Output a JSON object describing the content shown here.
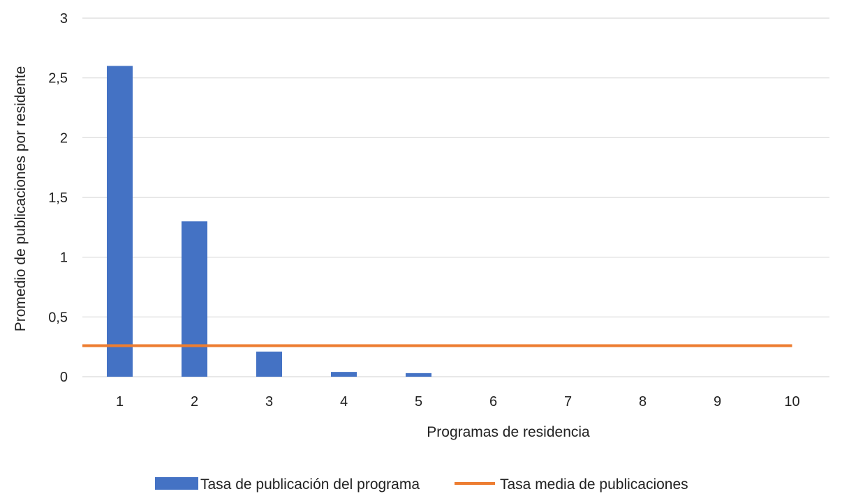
{
  "chart_data": {
    "type": "bar",
    "title": "",
    "xlabel": "Programas de residencia",
    "ylabel": "Promedio de publicaciones por residente",
    "categories": [
      "1",
      "2",
      "3",
      "4",
      "5",
      "6",
      "7",
      "8",
      "9",
      "10"
    ],
    "series": [
      {
        "name": "Tasa de publicación del programa",
        "type": "bar",
        "color": "#4472C4",
        "values": [
          2.6,
          1.3,
          0.21,
          0.04,
          0.03,
          0,
          0,
          0,
          0,
          0
        ]
      },
      {
        "name": "Tasa media de publicaciones",
        "type": "line",
        "color": "#ED7D31",
        "values": [
          0.26,
          0.26,
          0.26,
          0.26,
          0.26,
          0.26,
          0.26,
          0.26,
          0.26,
          0.26
        ]
      }
    ],
    "ylim": [
      0,
      3
    ],
    "yticks": [
      0,
      0.5,
      1,
      1.5,
      2,
      2.5,
      3
    ],
    "ytick_labels": [
      "0",
      "0,5",
      "1",
      "1,5",
      "2",
      "2,5",
      "3"
    ],
    "grid": true,
    "gridline_color": "#d9d9d9",
    "legend_position": "bottom"
  }
}
